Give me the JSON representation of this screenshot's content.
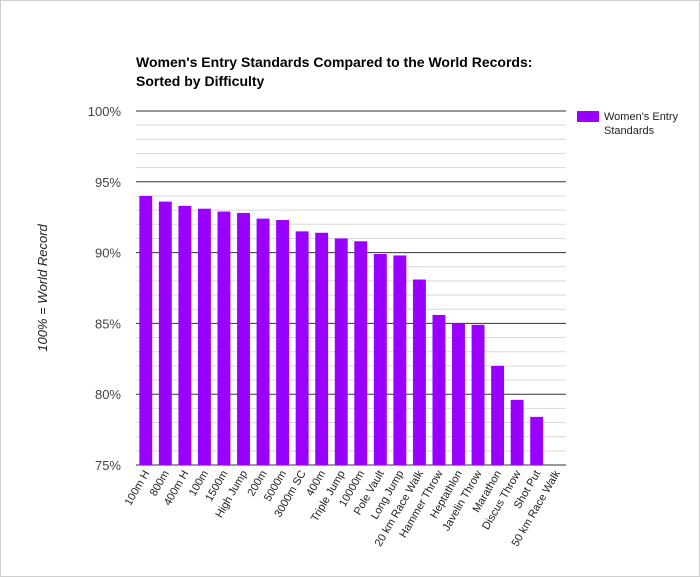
{
  "chart_data": {
    "type": "bar",
    "title_lines": [
      "Women's Entry Standards Compared to the World Records:",
      "Sorted by Difficulty"
    ],
    "xlabel": "",
    "ylabel": "100% = World Record",
    "ylim": [
      75,
      100
    ],
    "yticks": [
      75,
      80,
      85,
      90,
      95,
      100
    ],
    "ytick_labels": [
      "75%",
      "80%",
      "85%",
      "90%",
      "95%",
      "100%"
    ],
    "minor_gridlines_per_major": 5,
    "legend_position": "top-right",
    "categories": [
      "100m H",
      "800m",
      "400m H",
      "100m",
      "1500m",
      "High Jump",
      "200m",
      "5000m",
      "3000m SC",
      "400m",
      "Triple Jump",
      "10000m",
      "Pole Vault",
      "Long Jump",
      "20 km Race Walk",
      "Hammer Throw",
      "Heptathlon",
      "Javelin Throw",
      "Marathon",
      "Discus Throw",
      "Shot Put",
      "50 km Race Walk"
    ],
    "series": [
      {
        "name": "Women's Entry Standards",
        "legend_lines": [
          "Women's Entry",
          "Standards"
        ],
        "color": "#9900ff",
        "values": [
          94.0,
          93.6,
          93.3,
          93.1,
          92.9,
          92.8,
          92.4,
          92.3,
          91.5,
          91.4,
          91.0,
          90.8,
          89.9,
          89.8,
          88.1,
          85.6,
          85.0,
          84.9,
          82.0,
          79.6,
          78.4,
          null
        ]
      }
    ]
  }
}
